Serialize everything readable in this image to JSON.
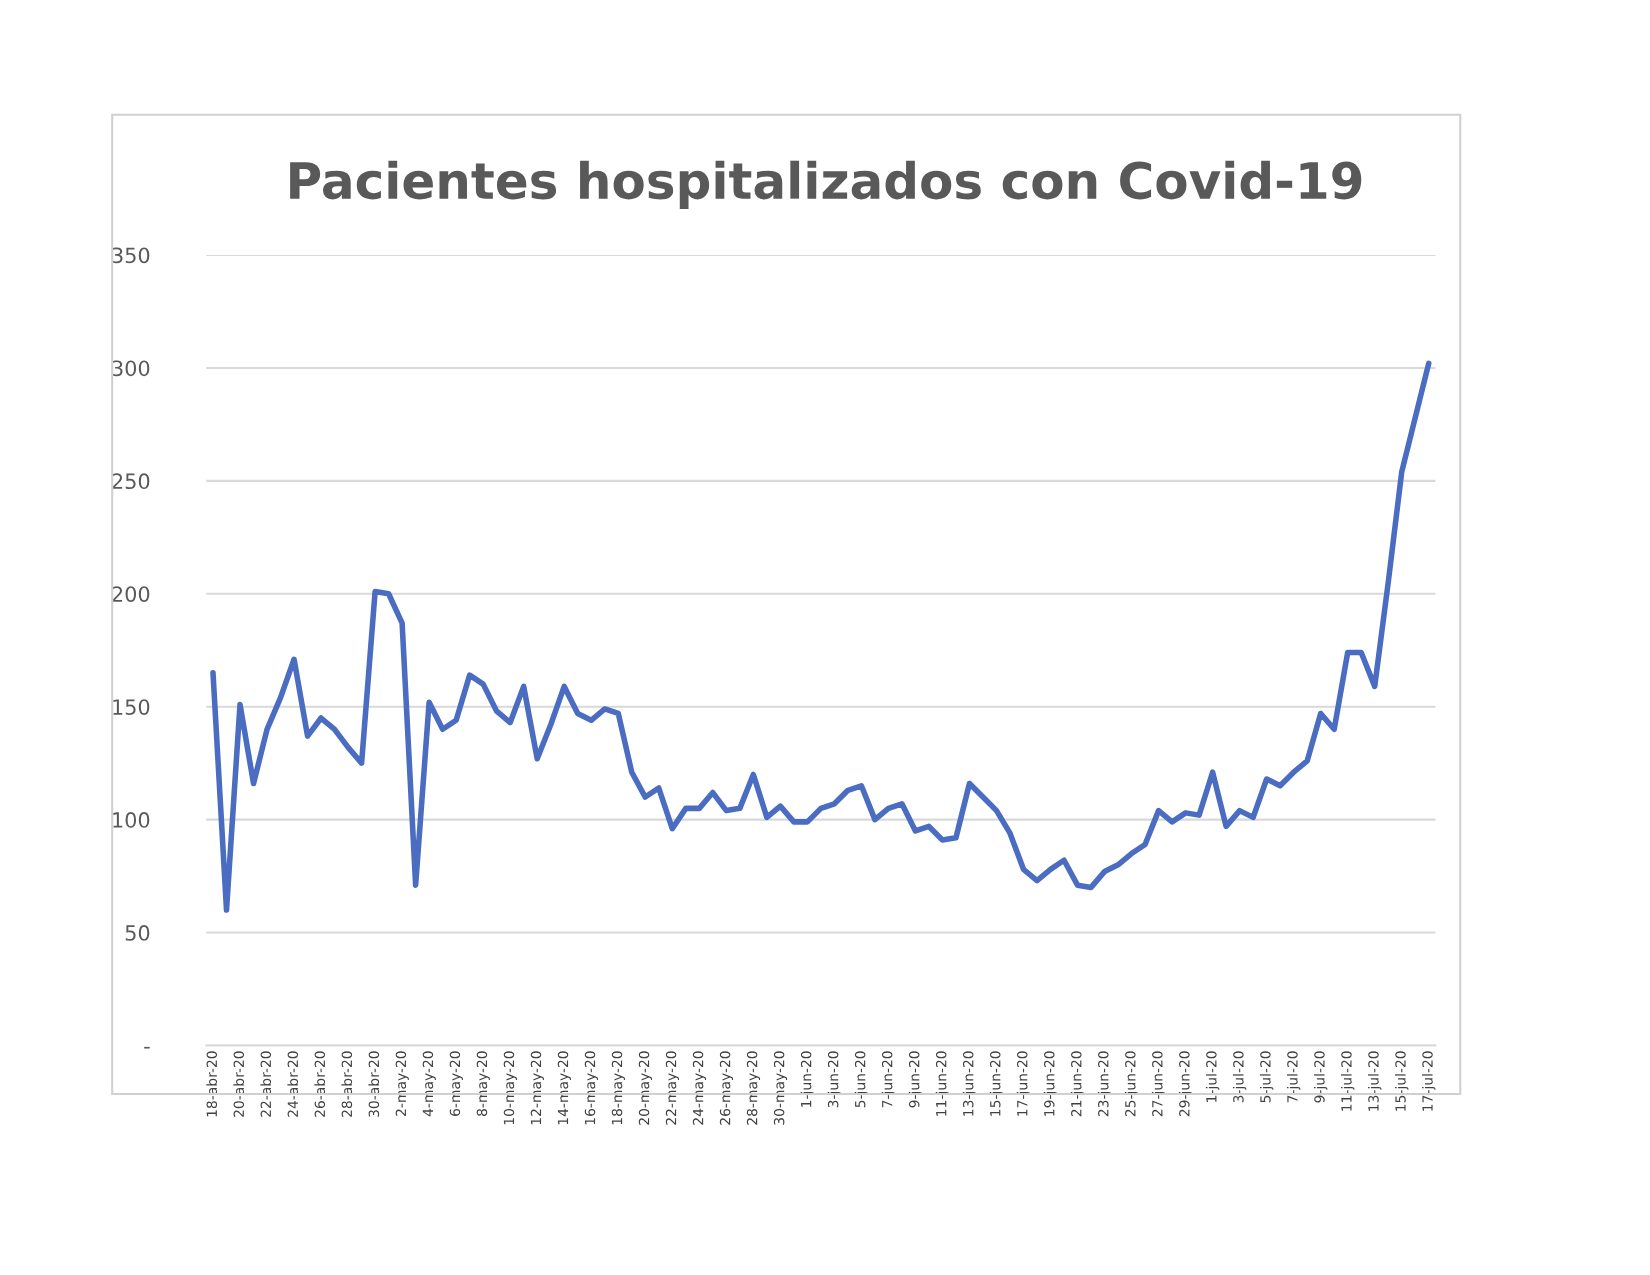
{
  "chart_data": {
    "type": "line",
    "title": "Pacientes hospitalizados con Covid-19",
    "categories": [
      "18-abr-20",
      null,
      "20-abr-20",
      null,
      "22-abr-20",
      null,
      "24-abr-20",
      null,
      "26-abr-20",
      null,
      "28-abr-20",
      null,
      "30-abr-20",
      null,
      "2-may-20",
      null,
      "4-may-20",
      null,
      "6-may-20",
      null,
      "8-may-20",
      null,
      "10-may-20",
      null,
      "12-may-20",
      null,
      "14-may-20",
      null,
      "16-may-20",
      null,
      "18-may-20",
      null,
      "20-may-20",
      null,
      "22-may-20",
      null,
      "24-may-20",
      null,
      "26-may-20",
      null,
      "28-may-20",
      null,
      "30-may-20",
      null,
      "1-jun-20",
      null,
      "3-jun-20",
      null,
      "5-jun-20",
      null,
      "7-jun-20",
      null,
      "9-jun-20",
      null,
      "11-jun-20",
      null,
      "13-jun-20",
      null,
      "15-jun-20",
      null,
      "17-jun-20",
      null,
      "19-jun-20",
      null,
      "21-jun-20",
      null,
      "23-jun-20",
      null,
      "25-jun-20",
      null,
      "27-jun-20",
      null,
      "29-jun-20",
      null,
      "1-jul-20",
      null,
      "3-jul-20",
      null,
      "5-jul-20",
      null,
      "7-jul-20",
      null,
      "9-jul-20",
      null,
      "11-jul-20",
      null,
      "13-jul-20",
      null,
      "15-jul-20",
      null,
      "17-jul-20"
    ],
    "series": [
      {
        "color": "#4a6cc1",
        "values": [
          165,
          60,
          151,
          116,
          140,
          154,
          171,
          137,
          145,
          140,
          132,
          125,
          201,
          200,
          187,
          71,
          152,
          140,
          144,
          164,
          160,
          148,
          143,
          159,
          127,
          142,
          159,
          147,
          144,
          149,
          147,
          121,
          110,
          114,
          96,
          105,
          105,
          112,
          104,
          105,
          120,
          101,
          106,
          99,
          99,
          105,
          107,
          113,
          115,
          100,
          105,
          107,
          95,
          97,
          91,
          92,
          116,
          110,
          104,
          94,
          78,
          73,
          78,
          82,
          71,
          70,
          77,
          80,
          85,
          89,
          104,
          99,
          103,
          102,
          121,
          97,
          104,
          101,
          118,
          115,
          121,
          126,
          147,
          140,
          174,
          174,
          159,
          205,
          254,
          278,
          302
        ]
      }
    ],
    "ylim": [
      0,
      350
    ],
    "yticks": [
      {
        "value": 0,
        "label": "-"
      },
      50,
      100,
      150,
      200,
      250,
      300,
      350
    ],
    "grid": "y",
    "legend": false,
    "marker": "none",
    "line_style": "solid"
  }
}
